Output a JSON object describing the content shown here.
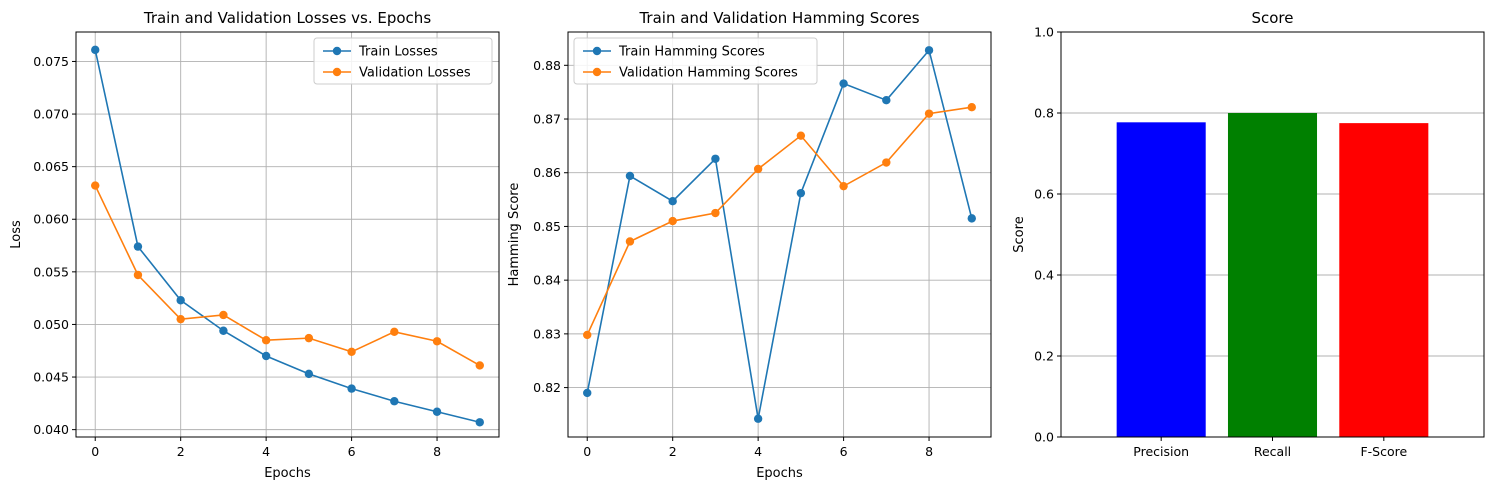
{
  "chart_data": [
    {
      "type": "line",
      "title": "Train and Validation Losses vs. Epochs",
      "xlabel": "Epochs",
      "ylabel": "Loss",
      "x": [
        0,
        1,
        2,
        3,
        4,
        5,
        6,
        7,
        8,
        9
      ],
      "xlim": [
        -0.45,
        9.45
      ],
      "ylim": [
        0.0393,
        0.0778
      ],
      "xticks": [
        0,
        2,
        4,
        6,
        8
      ],
      "yticks": [
        0.04,
        0.045,
        0.05,
        0.055,
        0.06,
        0.065,
        0.07,
        0.075
      ],
      "ytick_decimals": 3,
      "grid": true,
      "legend": "top-right",
      "series": [
        {
          "name": "Train Losses",
          "color": "#1f77b4",
          "values": [
            0.0761,
            0.0574,
            0.0523,
            0.0494,
            0.047,
            0.0453,
            0.0439,
            0.0427,
            0.0417,
            0.0407
          ]
        },
        {
          "name": "Validation Losses",
          "color": "#ff7f0e",
          "values": [
            0.0632,
            0.0547,
            0.0505,
            0.0509,
            0.0485,
            0.0487,
            0.0474,
            0.0493,
            0.0484,
            0.0461
          ]
        }
      ]
    },
    {
      "type": "line",
      "title": "Train and Validation Hamming Scores",
      "xlabel": "Epochs",
      "ylabel": "Hamming Score",
      "x": [
        0,
        1,
        2,
        3,
        4,
        5,
        6,
        7,
        8,
        9
      ],
      "xlim": [
        -0.45,
        9.45
      ],
      "ylim": [
        0.8108,
        0.8862
      ],
      "xticks": [
        0,
        2,
        4,
        6,
        8
      ],
      "yticks": [
        0.82,
        0.83,
        0.84,
        0.85,
        0.86,
        0.87,
        0.88
      ],
      "ytick_decimals": 2,
      "grid": true,
      "legend": "top-left",
      "series": [
        {
          "name": "Train Hamming Scores",
          "color": "#1f77b4",
          "values": [
            0.819,
            0.8594,
            0.8547,
            0.8626,
            0.8142,
            0.8562,
            0.8766,
            0.8735,
            0.8828,
            0.8515
          ]
        },
        {
          "name": "Validation Hamming Scores",
          "color": "#ff7f0e",
          "values": [
            0.8298,
            0.8472,
            0.851,
            0.8525,
            0.8607,
            0.8669,
            0.8575,
            0.8619,
            0.871,
            0.8722
          ]
        }
      ]
    },
    {
      "type": "bar",
      "title": "Score",
      "xlabel": "",
      "ylabel": "Score",
      "categories": [
        "Precision",
        "Recall",
        "F-Score"
      ],
      "values": [
        0.777,
        0.8,
        0.775
      ],
      "colors": [
        "#0000ff",
        "#008000",
        "#ff0000"
      ],
      "ylim": [
        0,
        1.0
      ],
      "yticks": [
        0.0,
        0.2,
        0.4,
        0.6,
        0.8,
        1.0
      ],
      "ytick_decimals": 1,
      "grid": true
    }
  ]
}
